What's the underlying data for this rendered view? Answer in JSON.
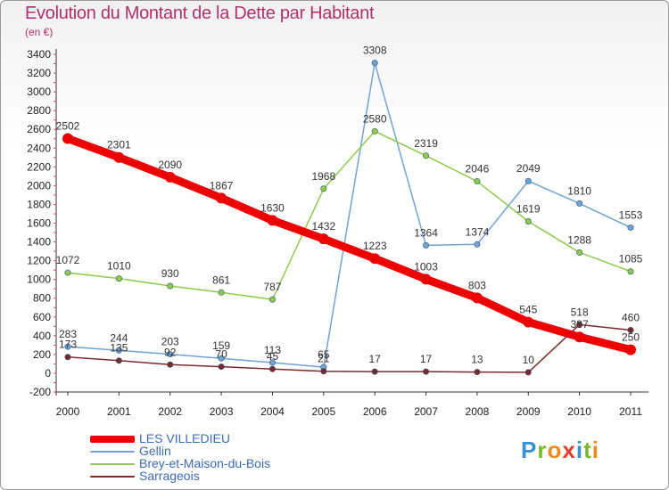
{
  "header": {
    "title": "Evolution du Montant de la Dette par Habitant",
    "unit": "(en €)"
  },
  "brand": {
    "letters": [
      "P",
      "r",
      "o",
      "x",
      "i",
      "t",
      "i"
    ],
    "colors": [
      "#3a8fd0",
      "#7ab82e",
      "#f08a1c",
      "#e23c2e",
      "#3a8fd0",
      "#7ab82e",
      "#f08a1c"
    ]
  },
  "chart_data": {
    "type": "line",
    "title": "Evolution du Montant de la Dette par Habitant",
    "ylabel": "(en €)",
    "xlabel": "",
    "x": [
      "2000",
      "2001",
      "2002",
      "2003",
      "2004",
      "2005",
      "2006",
      "2007",
      "2008",
      "2009",
      "2010",
      "2011"
    ],
    "ylim": [
      -200,
      3400
    ],
    "yticks": [
      -200,
      0,
      200,
      400,
      600,
      800,
      1000,
      1200,
      1400,
      1600,
      1800,
      2000,
      2200,
      2400,
      2600,
      2800,
      3000,
      3200,
      3400
    ],
    "grid": false,
    "legend_position": "bottom-left",
    "series": [
      {
        "name": "LES VILLEDIEU",
        "color": "#ee0000",
        "values": [
          2502,
          2301,
          2090,
          1867,
          1630,
          1432,
          1223,
          1003,
          803,
          545,
          387,
          250
        ],
        "labels": [
          "2502",
          "2301",
          "2090",
          "1867",
          "1630",
          "1432",
          "1223",
          "1003",
          "803",
          "545",
          "387",
          "250"
        ]
      },
      {
        "name": "Gellin",
        "color": "#6fa3d8",
        "values": [
          283,
          244,
          203,
          159,
          113,
          65,
          3308,
          1364,
          1374,
          2049,
          1810,
          1553
        ],
        "labels": [
          "283",
          "244",
          "203",
          "159",
          "113",
          "65",
          "3308",
          "1364",
          "1374",
          "2049",
          "1810",
          "1553"
        ]
      },
      {
        "name": "Brey-et-Maison-du-Bois",
        "color": "#8ccc4a",
        "values": [
          1072,
          1010,
          930,
          861,
          787,
          1968,
          2580,
          2319,
          2046,
          1619,
          1288,
          1085
        ],
        "labels": [
          "1072",
          "1010",
          "930",
          "861",
          "787",
          "1968",
          "2580",
          "2319",
          "2046",
          "1619",
          "1288",
          "1085"
        ]
      },
      {
        "name": "Sarrageois",
        "color": "#7a2a2a",
        "values": [
          173,
          135,
          92,
          70,
          45,
          21,
          17,
          17,
          13,
          10,
          518,
          460
        ],
        "labels": [
          "173",
          "135",
          "92",
          "70",
          "45",
          "21",
          "17",
          "17",
          "13",
          "10",
          "518",
          "460"
        ]
      }
    ]
  }
}
